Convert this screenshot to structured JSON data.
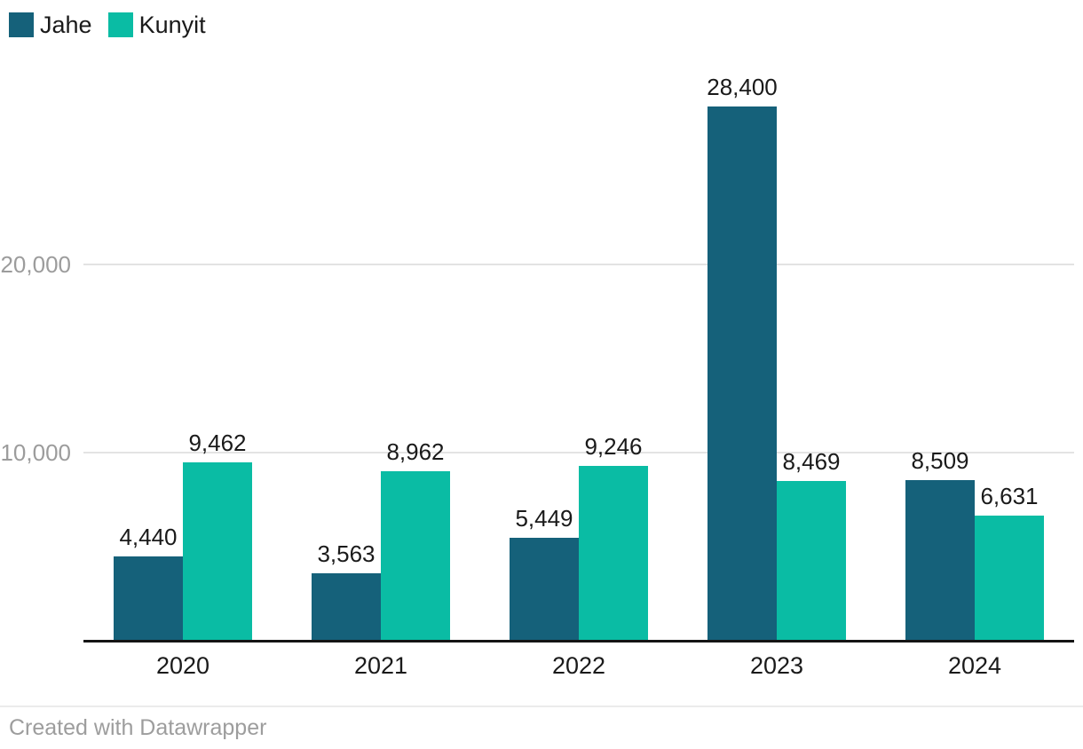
{
  "legend": {
    "items": [
      {
        "label": "Jahe",
        "color": "#15617a"
      },
      {
        "label": "Kunyit",
        "color": "#0abca4"
      }
    ]
  },
  "footer": {
    "text": "Created with Datawrapper"
  },
  "chart_data": {
    "type": "bar",
    "categories": [
      "2020",
      "2021",
      "2022",
      "2023",
      "2024"
    ],
    "series": [
      {
        "name": "Jahe",
        "color": "#15617a",
        "values": [
          4440,
          3563,
          5449,
          28400,
          8509
        ],
        "labels": [
          "4,440",
          "3,563",
          "5,449",
          "28,400",
          "8,509"
        ]
      },
      {
        "name": "Kunyit",
        "color": "#0abca4",
        "values": [
          9462,
          8962,
          9246,
          8469,
          6631
        ],
        "labels": [
          "9,462",
          "8,962",
          "9,246",
          "8,469",
          "6,631"
        ]
      }
    ],
    "y_ticks": [
      {
        "value": 10000,
        "label": "10,000"
      },
      {
        "value": 20000,
        "label": "20,000"
      }
    ],
    "ylim": [
      0,
      28400
    ],
    "grid": "horizontal",
    "legend_position": "top-left",
    "value_labels_shown": true,
    "colors": {
      "axis_line": "#141414",
      "gridline": "#e3e3e3",
      "tick_text": "#9c9c9c",
      "label_text": "#1a1a1a"
    }
  }
}
